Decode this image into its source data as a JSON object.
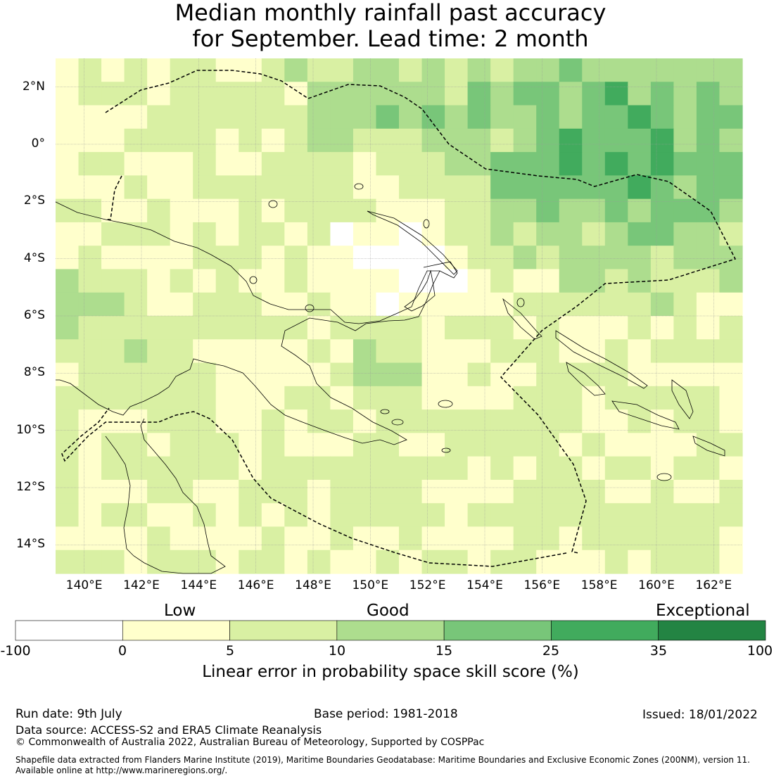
{
  "title": {
    "line1": "Median monthly rainfall past accuracy",
    "line2": "for September. Lead time: 2 month"
  },
  "map": {
    "lon_range": [
      139.0,
      163.0
    ],
    "lat_range": [
      -15.0,
      3.0
    ],
    "x_ticks": [
      {
        "value": 140,
        "label": "140°E"
      },
      {
        "value": 142,
        "label": "142°E"
      },
      {
        "value": 144,
        "label": "144°E"
      },
      {
        "value": 146,
        "label": "146°E"
      },
      {
        "value": 148,
        "label": "148°E"
      },
      {
        "value": 150,
        "label": "150°E"
      },
      {
        "value": 152,
        "label": "152°E"
      },
      {
        "value": 154,
        "label": "154°E"
      },
      {
        "value": 156,
        "label": "156°E"
      },
      {
        "value": 158,
        "label": "158°E"
      },
      {
        "value": 160,
        "label": "160°E"
      },
      {
        "value": 162,
        "label": "162°E"
      }
    ],
    "y_ticks": [
      {
        "value": 2,
        "label": "2°N"
      },
      {
        "value": 0,
        "label": "0°"
      },
      {
        "value": -2,
        "label": "2°S"
      },
      {
        "value": -4,
        "label": "4°S"
      },
      {
        "value": -6,
        "label": "6°S"
      },
      {
        "value": -8,
        "label": "8°S"
      },
      {
        "value": -10,
        "label": "10°S"
      },
      {
        "value": -12,
        "label": "12°S"
      },
      {
        "value": -14,
        "label": "14°S"
      }
    ],
    "grid": true,
    "layer": "skill-score grid with coastlines and EEZ boundary (dashed)"
  },
  "colorbar": {
    "categories": [
      "Low",
      "Good",
      "Exceptional"
    ],
    "boundaries": [
      "-100",
      "0",
      "5",
      "10",
      "15",
      "25",
      "35",
      "100"
    ],
    "colors": [
      "#ffffff",
      "#ffffcc",
      "#d9f0a3",
      "#addd8e",
      "#78c679",
      "#41ab5d",
      "#238443"
    ],
    "label": "Linear error in probability space skill score (%)"
  },
  "footer": {
    "run_date": "Run date: 9th July",
    "base_period": "Base period: 1981-2018",
    "issued": "Issued: 18/01/2022",
    "data_source": "Data source: ACCESS-S2 and ERA5 Climate Reanalysis",
    "copyright": "© Commonwealth of Australia 2022, Australian Bureau of Meteorology, Supported by COSPPac",
    "shapefile_line1": "Shapefile data extracted from Flanders Marine Institute (2019), Maritime Boundaries Geodatabase: Maritime Boundaries and Exclusive Economic Zones (200NM), version 11.",
    "shapefile_line2": "Available online at http://www.marineregions.org/."
  }
}
